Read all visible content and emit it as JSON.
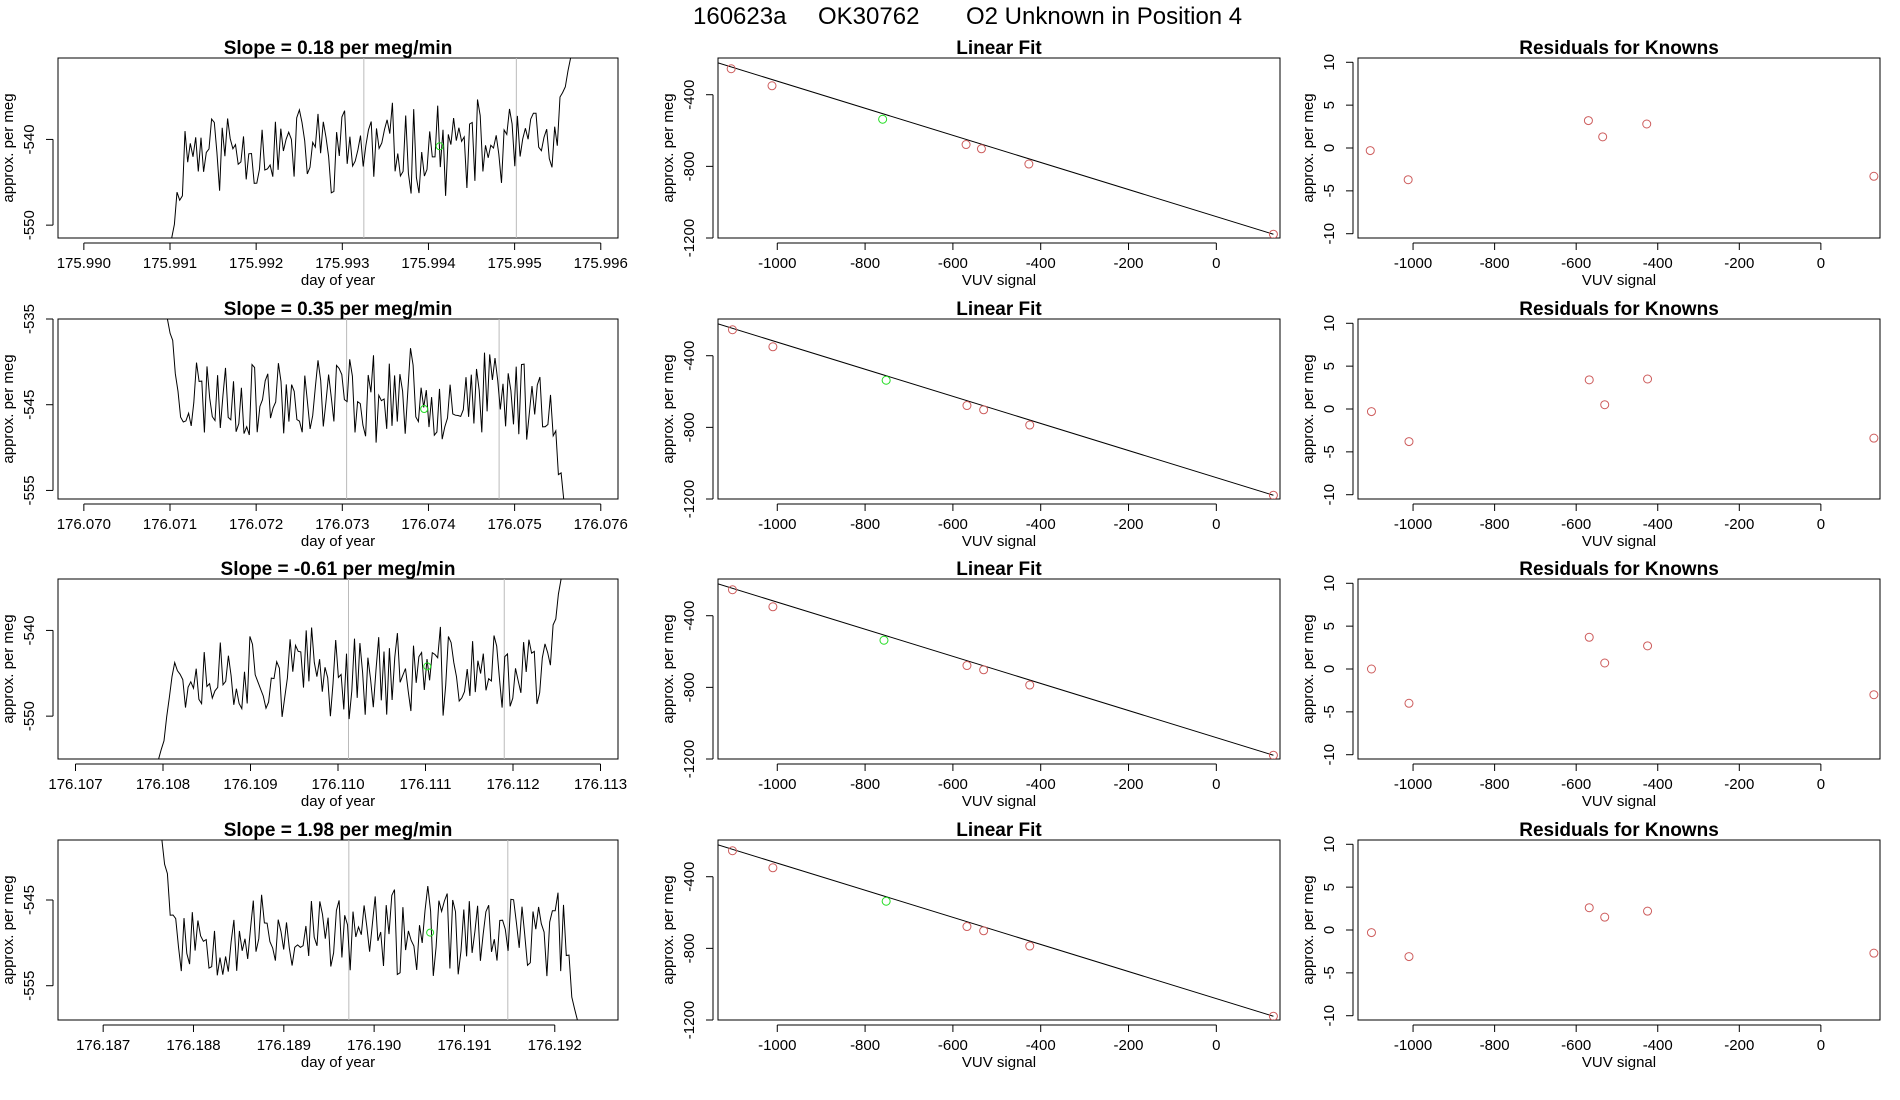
{
  "figure": {
    "title_parts": [
      "160623a",
      "OK30762",
      "O2 Unknown in Position  4"
    ]
  },
  "colors": {
    "line": "#000000",
    "known": "#cd5c5c",
    "unknown": "#22dd22",
    "vline": "#bbbbbb"
  },
  "chart_data": [
    {
      "type": "line",
      "title": "Slope =  0.18  per meg/min",
      "xlabel": "day of year",
      "ylabel": "approx. per meg",
      "xticks": [
        "175.990",
        "175.991",
        "175.992",
        "175.993",
        "175.994",
        "175.995",
        "175.996"
      ],
      "yticks": [
        "-540",
        "-550"
      ],
      "xlim": [
        175.9897,
        175.9962
      ],
      "ylim": [
        -551.5,
        -530.5
      ],
      "vlines": [
        175.99325,
        175.99502
      ],
      "series": [
        {
          "x_start": 175.99102,
          "x_end": 175.99565,
          "base": -541,
          "amplitude": 4.5,
          "seed": 11,
          "start_from": -551.5,
          "end_to": -530.5
        }
      ],
      "unknown_point": {
        "x": 175.99413,
        "y": -540.8
      }
    },
    {
      "type": "scatter",
      "title": "Linear Fit",
      "xlabel": "VUV signal",
      "ylabel": "approx. per meg",
      "xticks": [
        "-1000",
        "-800",
        "-600",
        "-400",
        "-200",
        "0"
      ],
      "yticks": [
        "-400",
        "-800",
        "-1200"
      ],
      "xlim": [
        -1135,
        145
      ],
      "ylim": [
        -1200,
        -195
      ],
      "knowns": [
        {
          "x": -1105,
          "y": -255
        },
        {
          "x": -1012,
          "y": -350
        },
        {
          "x": -570,
          "y": -678
        },
        {
          "x": -535,
          "y": -702
        },
        {
          "x": -427,
          "y": -787
        },
        {
          "x": 130,
          "y": -1179
        }
      ],
      "unknown": {
        "x": -760,
        "y": -537
      },
      "fit_line": [
        [
          -1135,
          -222
        ],
        [
          130,
          -1179
        ]
      ]
    },
    {
      "type": "scatter",
      "title": "Residuals for Knowns",
      "xlabel": "VUV signal",
      "ylabel": "approx. per meg",
      "xticks": [
        "-1000",
        "-800",
        "-600",
        "-400",
        "-200",
        "0"
      ],
      "yticks": [
        "10",
        "5",
        "0",
        "-5",
        "-10"
      ],
      "xlim": [
        -1135,
        145
      ],
      "ylim": [
        -10.5,
        10.5
      ],
      "points": [
        {
          "x": -1105,
          "y": -0.3
        },
        {
          "x": -1012,
          "y": -3.7
        },
        {
          "x": -570,
          "y": 3.2
        },
        {
          "x": -535,
          "y": 1.3
        },
        {
          "x": -427,
          "y": 2.8
        },
        {
          "x": 130,
          "y": -3.3
        }
      ]
    },
    {
      "type": "line",
      "title": "Slope =  0.35  per meg/min",
      "xlabel": "day of year",
      "ylabel": "approx. per meg",
      "xticks": [
        "176.070",
        "176.071",
        "176.072",
        "176.073",
        "176.074",
        "176.075",
        "176.076"
      ],
      "yticks": [
        "-535",
        "-545",
        "-555"
      ],
      "xlim": [
        176.0697,
        176.0762
      ],
      "ylim": [
        -556,
        -535
      ],
      "vlines": [
        176.07305,
        176.07482
      ],
      "series": [
        {
          "x_start": 176.07097,
          "x_end": 176.07557,
          "base": -544,
          "amplitude": 4.5,
          "seed": 23,
          "start_from": -535,
          "end_to": -556
        }
      ],
      "unknown_point": {
        "x": 176.07395,
        "y": -545.5
      }
    },
    {
      "type": "scatter",
      "title": "Linear Fit",
      "xlabel": "VUV signal",
      "ylabel": "approx. per meg",
      "xticks": [
        "-1000",
        "-800",
        "-600",
        "-400",
        "-200",
        "0"
      ],
      "yticks": [
        "-400",
        "-800",
        "-1200"
      ],
      "xlim": [
        -1135,
        145
      ],
      "ylim": [
        -1200,
        -195
      ],
      "knowns": [
        {
          "x": -1102,
          "y": -255
        },
        {
          "x": -1010,
          "y": -350
        },
        {
          "x": -568,
          "y": -678
        },
        {
          "x": -530,
          "y": -702
        },
        {
          "x": -425,
          "y": -787
        },
        {
          "x": 130,
          "y": -1179
        }
      ],
      "unknown": {
        "x": -752,
        "y": -537
      },
      "fit_line": [
        [
          -1135,
          -222
        ],
        [
          130,
          -1179
        ]
      ]
    },
    {
      "type": "scatter",
      "title": "Residuals for Knowns",
      "xlabel": "VUV signal",
      "ylabel": "approx. per meg",
      "xticks": [
        "-1000",
        "-800",
        "-600",
        "-400",
        "-200",
        "0"
      ],
      "yticks": [
        "10",
        "5",
        "0",
        "-5",
        "-10"
      ],
      "xlim": [
        -1135,
        145
      ],
      "ylim": [
        -10.5,
        10.5
      ],
      "points": [
        {
          "x": -1102,
          "y": -0.3
        },
        {
          "x": -1010,
          "y": -3.8
        },
        {
          "x": -568,
          "y": 3.4
        },
        {
          "x": -530,
          "y": 0.5
        },
        {
          "x": -425,
          "y": 3.5
        },
        {
          "x": 130,
          "y": -3.4
        }
      ]
    },
    {
      "type": "line",
      "title": "Slope =  -0.61  per meg/min",
      "xlabel": "day of year",
      "ylabel": "approx. per meg",
      "xticks": [
        "176.107",
        "176.108",
        "176.109",
        "176.110",
        "176.111",
        "176.112",
        "176.113"
      ],
      "yticks": [
        "-540",
        "-550"
      ],
      "xlim": [
        176.1068,
        176.1132
      ],
      "ylim": [
        -555,
        -534
      ],
      "vlines": [
        176.11012,
        176.1119
      ],
      "series": [
        {
          "x_start": 176.10795,
          "x_end": 176.11255,
          "base": -545,
          "amplitude": 4.5,
          "seed": 37,
          "start_from": -555,
          "end_to": -534
        }
      ],
      "unknown_point": {
        "x": 176.11102,
        "y": -544.2
      }
    },
    {
      "type": "scatter",
      "title": "Linear Fit",
      "xlabel": "VUV signal",
      "ylabel": "approx. per meg",
      "xticks": [
        "-1000",
        "-800",
        "-600",
        "-400",
        "-200",
        "0"
      ],
      "yticks": [
        "-400",
        "-800",
        "-1200"
      ],
      "xlim": [
        -1135,
        145
      ],
      "ylim": [
        -1200,
        -195
      ],
      "knowns": [
        {
          "x": -1102,
          "y": -255
        },
        {
          "x": -1010,
          "y": -350
        },
        {
          "x": -568,
          "y": -678
        },
        {
          "x": -530,
          "y": -702
        },
        {
          "x": -425,
          "y": -787
        },
        {
          "x": 130,
          "y": -1179
        }
      ],
      "unknown": {
        "x": -757,
        "y": -537
      },
      "fit_line": [
        [
          -1135,
          -222
        ],
        [
          130,
          -1179
        ]
      ]
    },
    {
      "type": "scatter",
      "title": "Residuals for Knowns",
      "xlabel": "VUV signal",
      "ylabel": "approx. per meg",
      "xticks": [
        "-1000",
        "-800",
        "-600",
        "-400",
        "-200",
        "0"
      ],
      "yticks": [
        "10",
        "5",
        "0",
        "-5",
        "-10"
      ],
      "xlim": [
        -1135,
        145
      ],
      "ylim": [
        -10.5,
        10.5
      ],
      "points": [
        {
          "x": -1102,
          "y": 0.0
        },
        {
          "x": -1010,
          "y": -4.0
        },
        {
          "x": -568,
          "y": 3.7
        },
        {
          "x": -530,
          "y": 0.7
        },
        {
          "x": -425,
          "y": 2.7
        },
        {
          "x": 130,
          "y": -3.0
        }
      ]
    },
    {
      "type": "line",
      "title": "Slope =  1.98  per meg/min",
      "xlabel": "day of year",
      "ylabel": "approx. per meg",
      "xticks": [
        "176.187",
        "176.188",
        "176.189",
        "176.190",
        "176.191",
        "176.192"
      ],
      "yticks": [
        "-545",
        "-555"
      ],
      "xlim": [
        176.1865,
        176.1927
      ],
      "ylim": [
        -559,
        -538
      ],
      "vlines": [
        176.18972,
        176.19148
      ],
      "series": [
        {
          "x_start": 176.18765,
          "x_end": 176.19225,
          "base": -549,
          "amplitude": 4.5,
          "seed": 53,
          "start_from": -538,
          "end_to": -559
        }
      ],
      "unknown_point": {
        "x": 176.19062,
        "y": -548.8
      }
    },
    {
      "type": "scatter",
      "title": "Linear Fit",
      "xlabel": "VUV signal",
      "ylabel": "approx. per meg",
      "xticks": [
        "-1000",
        "-800",
        "-600",
        "-400",
        "-200",
        "0"
      ],
      "yticks": [
        "-400",
        "-800",
        "-1200"
      ],
      "xlim": [
        -1135,
        145
      ],
      "ylim": [
        -1200,
        -195
      ],
      "knowns": [
        {
          "x": -1102,
          "y": -255
        },
        {
          "x": -1010,
          "y": -350
        },
        {
          "x": -568,
          "y": -678
        },
        {
          "x": -530,
          "y": -702
        },
        {
          "x": -425,
          "y": -787
        },
        {
          "x": 130,
          "y": -1179
        }
      ],
      "unknown": {
        "x": -752,
        "y": -537
      },
      "fit_line": [
        [
          -1135,
          -222
        ],
        [
          130,
          -1179
        ]
      ]
    },
    {
      "type": "scatter",
      "title": "Residuals for Knowns",
      "xlabel": "VUV signal",
      "ylabel": "approx. per meg",
      "xticks": [
        "-1000",
        "-800",
        "-600",
        "-400",
        "-200",
        "0"
      ],
      "yticks": [
        "10",
        "5",
        "0",
        "-5",
        "-10"
      ],
      "xlim": [
        -1135,
        145
      ],
      "ylim": [
        -10.5,
        10.5
      ],
      "points": [
        {
          "x": -1102,
          "y": -0.3
        },
        {
          "x": -1010,
          "y": -3.1
        },
        {
          "x": -568,
          "y": 2.6
        },
        {
          "x": -530,
          "y": 1.5
        },
        {
          "x": -425,
          "y": 2.2
        },
        {
          "x": 130,
          "y": -2.7
        }
      ]
    }
  ]
}
